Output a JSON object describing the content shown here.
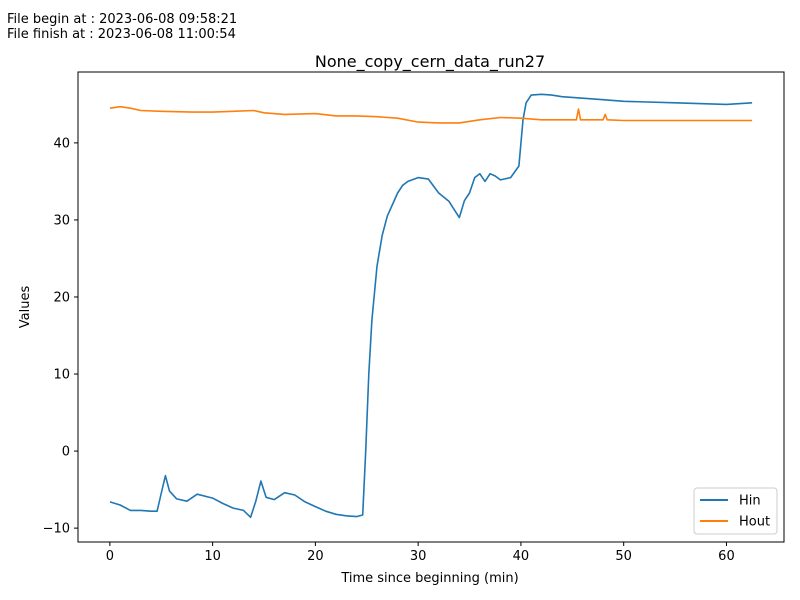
{
  "header": {
    "begin_label": "File begin at : ",
    "begin_value": "2023-06-08 09:58:21",
    "finish_label": "File finish at : ",
    "finish_value": "2023-06-08 11:00:54"
  },
  "chart_data": {
    "type": "line",
    "title": "None_copy_cern_data_run27",
    "xlabel": "Time since beginning (min)",
    "ylabel": "Values",
    "xlim": [
      -3.1,
      65.6
    ],
    "ylim": [
      -11.8,
      49.2
    ],
    "xticks": [
      0,
      10,
      20,
      30,
      40,
      50,
      60
    ],
    "yticks": [
      -10,
      0,
      10,
      20,
      30,
      40
    ],
    "grid": false,
    "legend": "lower-right",
    "series": [
      {
        "name": "Hin",
        "color": "#1f77b4",
        "x": [
          0,
          1,
          2,
          3,
          4,
          4.6,
          5,
          5.4,
          5.8,
          6.5,
          7.5,
          8.5,
          10,
          11,
          12,
          13,
          13.7,
          14.2,
          14.7,
          15.2,
          16,
          17,
          18,
          19,
          20,
          21,
          22,
          23,
          24,
          24.6,
          24.9,
          25.2,
          25.5,
          26,
          26.5,
          27,
          27.5,
          28,
          28.5,
          29,
          30,
          31,
          32,
          33,
          34,
          34.5,
          35,
          35.5,
          36,
          36.5,
          37,
          37.5,
          38,
          39,
          39.8,
          40.2,
          40.5,
          41,
          42,
          43,
          44,
          46,
          48,
          50,
          55,
          60,
          62.5
        ],
        "values": [
          -6.6,
          -7.0,
          -7.7,
          -7.7,
          -7.8,
          -7.8,
          -5.5,
          -3.2,
          -5.2,
          -6.2,
          -6.5,
          -5.6,
          -6.1,
          -6.8,
          -7.4,
          -7.7,
          -8.6,
          -6.5,
          -3.9,
          -6.0,
          -6.3,
          -5.4,
          -5.7,
          -6.6,
          -7.2,
          -7.8,
          -8.2,
          -8.4,
          -8.5,
          -8.3,
          0,
          10,
          17,
          24,
          28,
          30.5,
          32,
          33.5,
          34.5,
          35,
          35.5,
          35.3,
          33.5,
          32.4,
          30.3,
          32.5,
          33.5,
          35.5,
          36,
          35,
          36,
          35.7,
          35.2,
          35.5,
          37,
          43,
          45.2,
          46.2,
          46.3,
          46.2,
          46,
          45.8,
          45.6,
          45.4,
          45.2,
          45.0,
          45.2
        ]
      },
      {
        "name": "Hout",
        "color": "#ff7f0e",
        "x": [
          0,
          1,
          2,
          3,
          5,
          8,
          10,
          12,
          14,
          15,
          17,
          20,
          22,
          24,
          26,
          28,
          30,
          32,
          34,
          36,
          38,
          40,
          42,
          44,
          45.4,
          45.6,
          45.8,
          48,
          48.2,
          48.4,
          50,
          55,
          60,
          62.5
        ],
        "values": [
          44.5,
          44.7,
          44.5,
          44.2,
          44.1,
          44.0,
          44.0,
          44.1,
          44.2,
          43.9,
          43.7,
          43.8,
          43.5,
          43.5,
          43.4,
          43.2,
          42.7,
          42.6,
          42.6,
          43.0,
          43.3,
          43.2,
          43.0,
          43.0,
          43.0,
          44.4,
          43.0,
          43.0,
          43.7,
          43.0,
          42.9,
          42.9,
          42.9,
          42.9
        ]
      }
    ]
  }
}
